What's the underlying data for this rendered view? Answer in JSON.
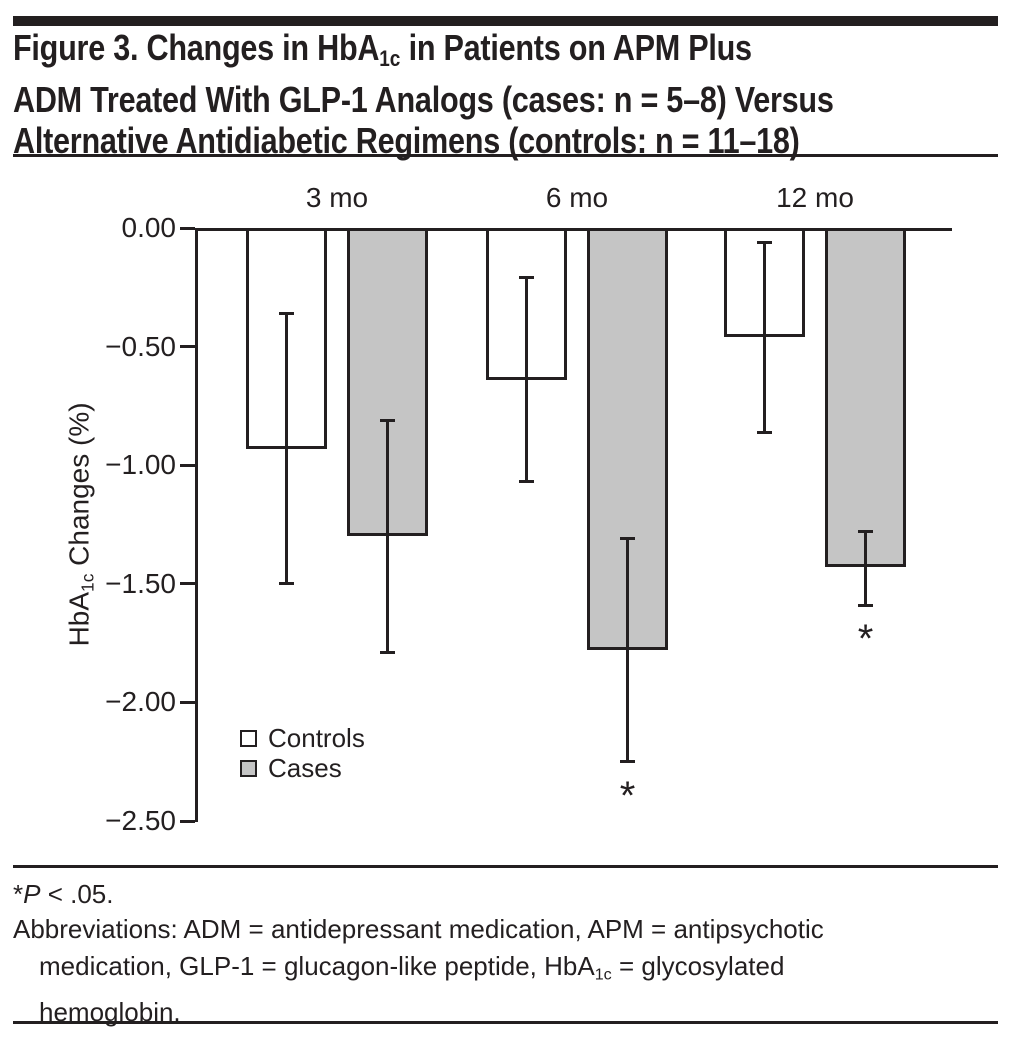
{
  "figure": {
    "title_lines": [
      {
        "pre": "Figure 3. Changes in HbA",
        "sub": "1c",
        "post": " in Patients on APM Plus"
      },
      {
        "pre": "ADM Treated With GLP-1 Analogs (cases: n = 5–8) Versus"
      },
      {
        "pre": "Alternative Antidiabetic Regimens (controls: n = 11–18)"
      }
    ]
  },
  "chart_data": {
    "type": "bar",
    "categories": [
      "3 mo",
      "6 mo",
      "12 mo"
    ],
    "series": [
      {
        "name": "Controls",
        "fill": "#ffffff",
        "values": [
          -0.93,
          -0.64,
          -0.46
        ],
        "err_high": [
          -0.36,
          -0.21,
          -0.06
        ],
        "err_low": [
          -1.5,
          -1.07,
          -0.86
        ],
        "significant": [
          false,
          false,
          false
        ]
      },
      {
        "name": "Cases",
        "fill": "#c5c5c5",
        "values": [
          -1.3,
          -1.78,
          -1.43
        ],
        "err_high": [
          -0.81,
          -1.31,
          -1.28
        ],
        "err_low": [
          -1.79,
          -2.25,
          -1.59
        ],
        "significant": [
          false,
          true,
          true
        ]
      }
    ],
    "ylabel_pre": "HbA",
    "ylabel_sub": "1c",
    "ylabel_post": " Changes (%)",
    "yticks": [
      {
        "label": "0.00",
        "value": 0
      },
      {
        "label": "−0.50",
        "value": -0.5
      },
      {
        "label": "−1.00",
        "value": -1.0
      },
      {
        "label": "−1.50",
        "value": -1.5
      },
      {
        "label": "−2.00",
        "value": -2.0
      },
      {
        "label": "−2.50",
        "value": -2.5
      }
    ],
    "ylim": [
      -2.5,
      0
    ],
    "error_bars": true,
    "significance_marker": "*",
    "legend_position": "lower-left",
    "bar_edge_color": "#231f20"
  },
  "footer": {
    "footnote": {
      "pre": "*",
      "italic": "P",
      "post": " < .05."
    },
    "abbrev_line1": "Abbreviations: ADM = antidepressant medication, APM = antipsychotic",
    "abbrev_line2_pre": "medication, GLP-1 = glucagon-like peptide, HbA",
    "abbrev_line2_sub": "1c",
    "abbrev_line2_post": " = glycosylated",
    "abbrev_line3": "hemoglobin."
  },
  "colors": {
    "ink": "#231f20",
    "background": "#ffffff",
    "control_bar_fill": "#ffffff",
    "case_bar_fill": "#c5c5c5"
  }
}
